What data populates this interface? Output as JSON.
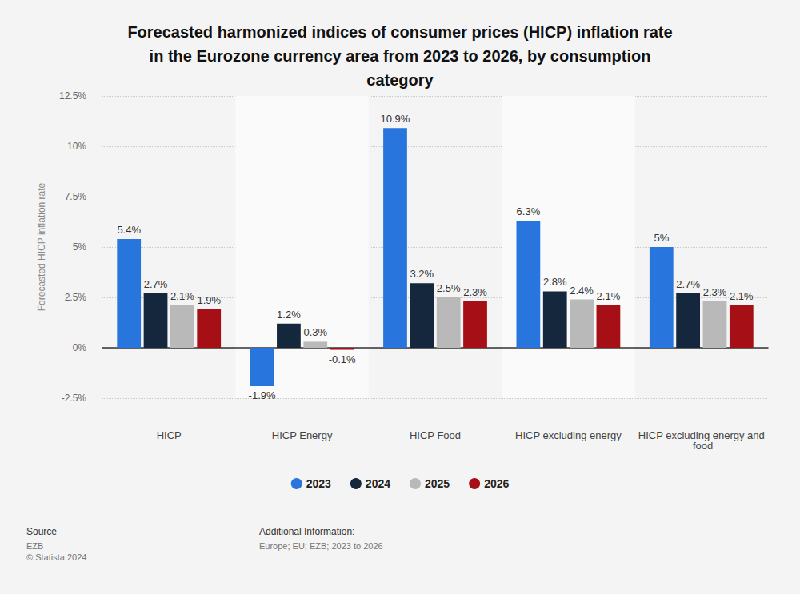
{
  "chart_data": {
    "type": "bar",
    "title": "Forecasted harmonized indices of consumer prices (HICP) inflation rate in the Eurozone currency area from 2023 to 2026, by consumption category",
    "ylabel": "Forecasted HICP inflation rate",
    "categories": [
      "HICP",
      "HICP Energy",
      "HICP Food",
      "HICP excluding energy",
      "HICP excluding energy and food"
    ],
    "series": [
      {
        "name": "2023",
        "color": "#2876dd",
        "values": [
          5.4,
          -1.9,
          10.9,
          6.3,
          5
        ],
        "value_labels": [
          "5.4%",
          "-1.9%",
          "10.9%",
          "6.3%",
          "5%"
        ]
      },
      {
        "name": "2024",
        "color": "#14273d",
        "values": [
          2.7,
          1.2,
          3.2,
          2.8,
          2.7
        ],
        "value_labels": [
          "2.7%",
          "1.2%",
          "3.2%",
          "2.8%",
          "2.7%"
        ]
      },
      {
        "name": "2025",
        "color": "#b9b9b9",
        "values": [
          2.1,
          0.3,
          2.5,
          2.4,
          2.3
        ],
        "value_labels": [
          "2.1%",
          "0.3%",
          "2.5%",
          "2.4%",
          "2.3%"
        ]
      },
      {
        "name": "2026",
        "color": "#a50f15",
        "values": [
          1.9,
          -0.1,
          2.3,
          2.1,
          2.1
        ],
        "value_labels": [
          "1.9%",
          "-0.1%",
          "2.3%",
          "2.1%",
          "2.1%"
        ]
      }
    ],
    "ylim": [
      -2.5,
      12.5
    ],
    "yticks": [
      {
        "value": -2.5,
        "label": "-2.5%"
      },
      {
        "value": 0,
        "label": "0%"
      },
      {
        "value": 2.5,
        "label": "2.5%"
      },
      {
        "value": 5,
        "label": "5%"
      },
      {
        "value": 7.5,
        "label": "7.5%"
      },
      {
        "value": 10,
        "label": "10%"
      },
      {
        "value": 12.5,
        "label": "12.5%"
      }
    ],
    "grid": true,
    "data_labels": true,
    "legend": "bottom",
    "annotations": [
      "Source",
      "EZB",
      "© Statista 2024",
      "Additional Information:",
      "Europe; EU; EZB; 2023 to 2026"
    ]
  }
}
